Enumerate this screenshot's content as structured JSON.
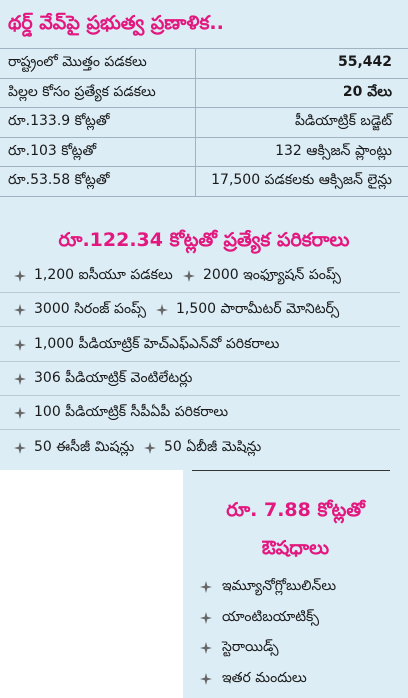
{
  "title": "థర్డ్ వేవ్‌పై ప్రభుత్వ ప్రణాళిక..",
  "table": {
    "rows": [
      [
        "రాష్ట్రంలో మొత్తం పడకలు",
        "55,442"
      ],
      [
        "పిల్లల కోసం ప్రత్యేక పడకలు",
        "20 వేలు"
      ],
      [
        "రూ.133.9 కోట్లతో",
        "పీడియాట్రిక్ బడ్జెట్"
      ],
      [
        "రూ.103 కోట్లతో",
        "132 ఆక్సిజన్ ప్లాంట్లు"
      ],
      [
        "రూ.53.58 కోట్లతో",
        "17,500 పడకలకు ఆక్సిజన్ లైన్లు"
      ]
    ]
  },
  "equipment": {
    "title": "రూ.122.34 కోట్లతో ప్రత్యేక పరికరాలు",
    "items": [
      [
        "1,200 ఐసీయూ పడకలు",
        "2000 ఇంఫ్యూషన్ పంప్స్"
      ],
      [
        "3000 సిరంజ్ పంప్స్",
        "1,500 పారామీటర్ మోనిటర్స్"
      ],
      [
        "1,000 పీడియాట్రిక్ హెచ్ఎఫ్ఎన్‌వో పరికరాలు"
      ],
      [
        "306 పీడియాట్రిక్ వెంటిలేటర్లు"
      ],
      [
        "100 పీడియాట్రిక్ సీపీఏపీ పరికరాలు"
      ],
      [
        "50 ఈసీజీ మిషన్లు",
        "50 ఏబీజీ మెషిన్లు"
      ]
    ]
  },
  "medicines": {
    "title": [
      "రూ. 7.88 కోట్లతో",
      "ఔషధాలు"
    ],
    "items": [
      "ఇమ్యూనోగ్లోబులిన్‌లు",
      "యాంటిబయాటిక్స్",
      "స్టెరాయిడ్స్",
      "ఇతర మందులు"
    ]
  }
}
